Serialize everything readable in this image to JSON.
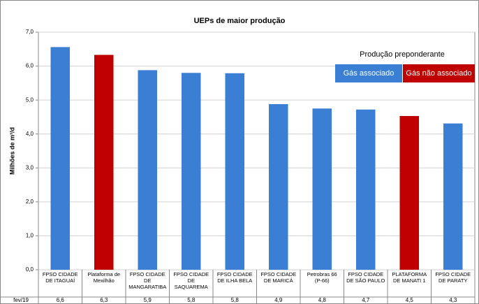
{
  "chart_data": {
    "type": "bar",
    "title": "UEPs de maior produção",
    "y_label": "Milhões de m³/d",
    "categories": [
      "FPSO CIDADE\nDE ITAGUAÍ",
      "Plataforma de\nMexilhão",
      "FPSO CIDADE\nDE\nMANGARATIBA",
      "FPSO CIDADE\nDE\nSAQUAREMA",
      "FPSO CIDADE\nDE ILHA BELA",
      "FPSO CIDADE\nDE MARICÁ",
      "Petrobras 66\n(P-66)",
      "FPSO CIDADE\nDE SÃO PAULO",
      "PLATAFORMA\nDE MANATI 1",
      "FPSO CIDADE\nDE PARATY"
    ],
    "row_label": "fev/19",
    "values": [
      6.56,
      6.33,
      5.88,
      5.8,
      5.79,
      4.88,
      4.75,
      4.72,
      4.53,
      4.31
    ],
    "value_labels": [
      "6,6",
      "6,3",
      "5,9",
      "5,8",
      "5,8",
      "4,9",
      "4,8",
      "4,7",
      "4,5",
      "4,3"
    ],
    "colors": [
      "#3a7fd4",
      "#c00000",
      "#3a7fd4",
      "#3a7fd4",
      "#3a7fd4",
      "#3a7fd4",
      "#3a7fd4",
      "#3a7fd4",
      "#c00000",
      "#3a7fd4"
    ],
    "legend": {
      "title": "Produção preponderante",
      "items": [
        {
          "label": "Gás associado",
          "color": "#3a7fd4"
        },
        {
          "label": "Gás não associado",
          "color": "#c00000"
        }
      ]
    },
    "ylim": [
      0,
      7
    ],
    "yticks": [
      {
        "value": 0,
        "label": "0,0"
      },
      {
        "value": 1,
        "label": "1,0"
      },
      {
        "value": 2,
        "label": "2,0"
      },
      {
        "value": 3,
        "label": "3,0"
      },
      {
        "value": 4,
        "label": "4,0"
      },
      {
        "value": 5,
        "label": "5,0"
      },
      {
        "value": 6,
        "label": "6,0"
      },
      {
        "value": 7,
        "label": "7,0"
      }
    ],
    "grid": true
  }
}
